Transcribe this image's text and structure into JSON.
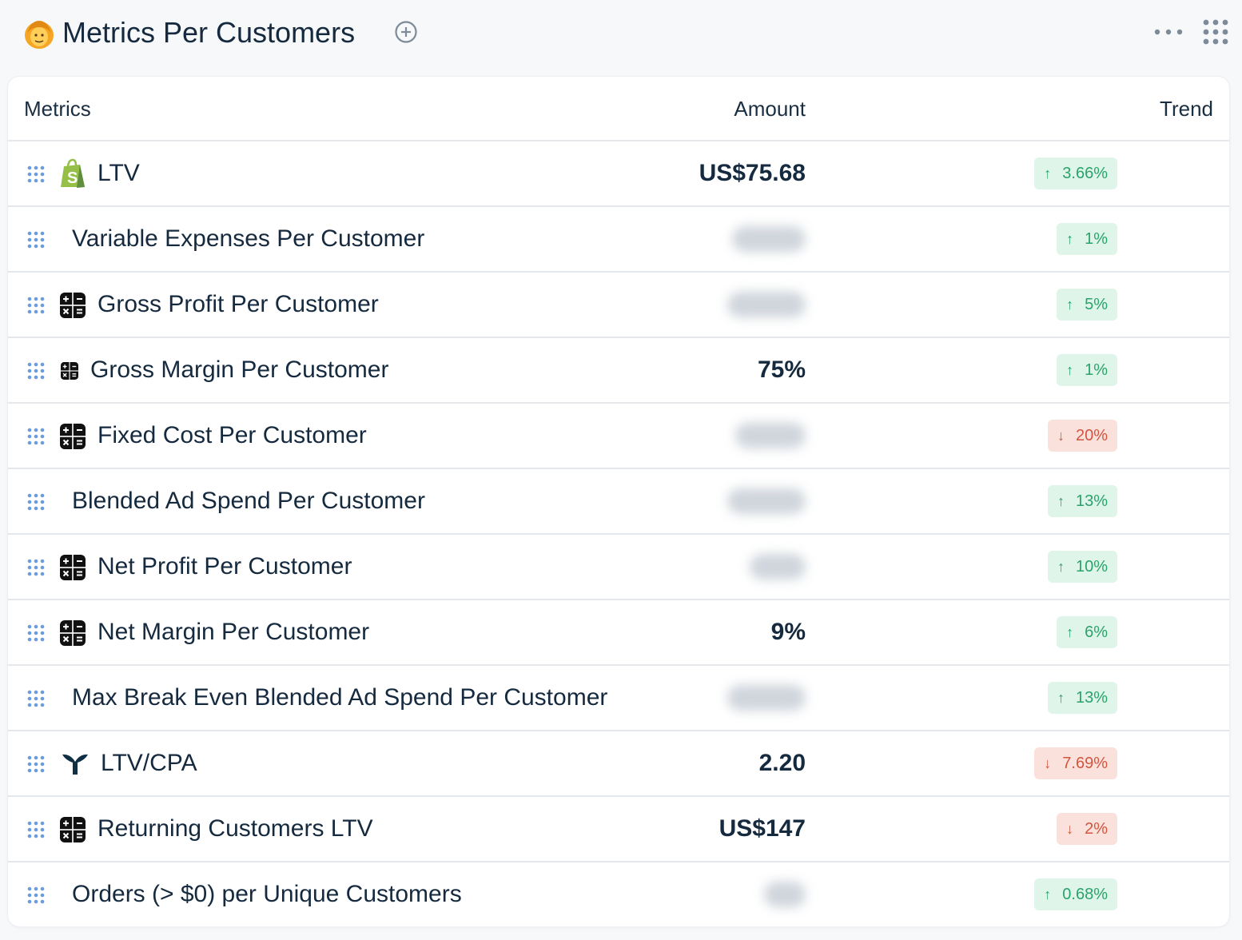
{
  "header": {
    "title": "Metrics Per Customers",
    "emoji": "person-emoji"
  },
  "table": {
    "columns": {
      "metrics": "Metrics",
      "amount": "Amount",
      "trend": "Trend"
    },
    "rows": [
      {
        "label": "LTV",
        "source_icon": "shopify-icon",
        "amount": "US$75.68",
        "amount_blurred": false,
        "trend": "3.66%",
        "direction": "up"
      },
      {
        "label": "Variable Expenses Per Customer",
        "source_icon": "",
        "amount": "",
        "amount_blurred": true,
        "trend": "1%",
        "direction": "up"
      },
      {
        "label": "Gross Profit Per Customer",
        "source_icon": "calculator-icon",
        "amount": "",
        "amount_blurred": true,
        "trend": "5%",
        "direction": "up"
      },
      {
        "label": "Gross Margin Per Customer",
        "source_icon": "calculator-icon",
        "amount": "75%",
        "amount_blurred": false,
        "trend": "1%",
        "direction": "up"
      },
      {
        "label": "Fixed Cost Per Customer",
        "source_icon": "calculator-icon",
        "amount": "",
        "amount_blurred": true,
        "trend": "20%",
        "direction": "down"
      },
      {
        "label": "Blended Ad Spend Per Customer",
        "source_icon": "",
        "amount": "",
        "amount_blurred": true,
        "trend": "13%",
        "direction": "up"
      },
      {
        "label": "Net Profit Per Customer",
        "source_icon": "calculator-icon",
        "amount": "",
        "amount_blurred": true,
        "trend": "10%",
        "direction": "up"
      },
      {
        "label": "Net Margin Per Customer",
        "source_icon": "calculator-icon",
        "amount": "9%",
        "amount_blurred": false,
        "trend": "6%",
        "direction": "up"
      },
      {
        "label": "Max Break Even Blended Ad Spend Per Customer",
        "source_icon": "",
        "amount": "",
        "amount_blurred": true,
        "trend": "13%",
        "direction": "up"
      },
      {
        "label": "LTV/CPA",
        "source_icon": "whale-logo-icon",
        "amount": "2.20",
        "amount_blurred": false,
        "trend": "7.69%",
        "direction": "down"
      },
      {
        "label": "Returning Customers LTV",
        "source_icon": "calculator-icon",
        "amount": "US$147",
        "amount_blurred": false,
        "trend": "2%",
        "direction": "down"
      },
      {
        "label": "Orders (> $0) per Unique Customers",
        "source_icon": "",
        "amount": "",
        "amount_blurred": true,
        "trend": "0.68%",
        "direction": "up"
      }
    ]
  },
  "colors": {
    "up_bg": "#dff5ea",
    "up_text": "#2aa36a",
    "down_bg": "#fbe1dc",
    "down_text": "#d2553f",
    "drag_dots": "#6b9be0"
  }
}
